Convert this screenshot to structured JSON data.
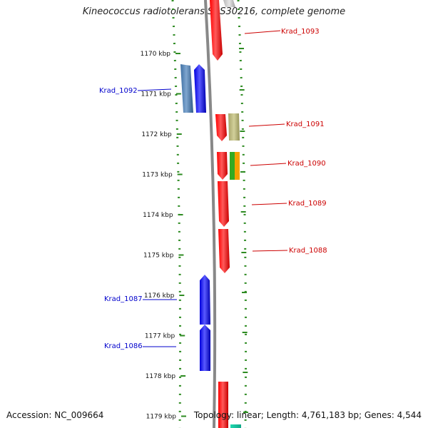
{
  "title": "Kineococcus radiotolerans SRS30216, complete genome",
  "footer": {
    "accession": "Accession: NC_009664",
    "summary": "Topology: linear; Length: 4,761,183 bp; Genes: 4,544"
  },
  "colors": {
    "forward_label": "#cc0000",
    "reverse_label": "#0000cc",
    "tick": "#2e8b22",
    "backbone": "#888888"
  },
  "ticks": [
    "1170 kbp",
    "1171 kbp",
    "1172 kbp",
    "1173 kbp",
    "1174 kbp",
    "1175 kbp",
    "1176 kbp",
    "1177 kbp",
    "1178 kbp",
    "1179 kbp"
  ],
  "genes": [
    {
      "name": "Krad_1093",
      "strand": "forward",
      "color": "#ff0000"
    },
    {
      "name": "Krad_1092",
      "strand": "reverse",
      "color": "#0000ee"
    },
    {
      "name": "Krad_1091",
      "strand": "forward",
      "color": "#ff0000"
    },
    {
      "name": "Krad_1090",
      "strand": "forward",
      "color": "#ff0000"
    },
    {
      "name": "Krad_1089",
      "strand": "forward",
      "color": "#ff0000"
    },
    {
      "name": "Krad_1088",
      "strand": "forward",
      "color": "#ff0000"
    },
    {
      "name": "Krad_1087",
      "strand": "reverse",
      "color": "#0000ee"
    },
    {
      "name": "Krad_1086",
      "strand": "reverse",
      "color": "#0000ee"
    }
  ]
}
